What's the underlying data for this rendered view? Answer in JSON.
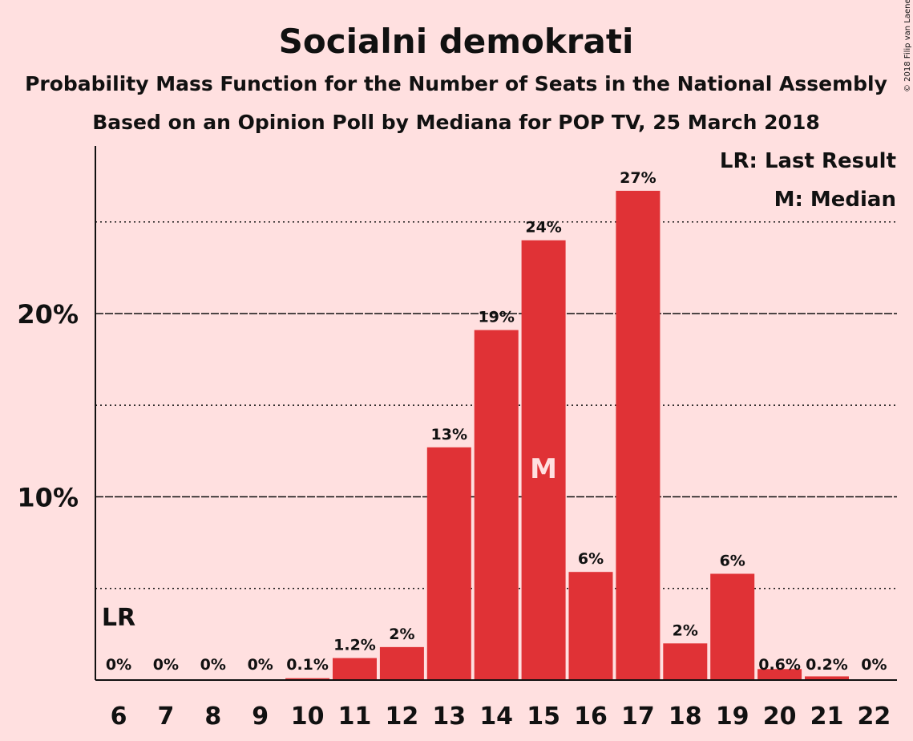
{
  "title": "Socialni demokrati",
  "subtitle1": "Probability Mass Function for the Number of Seats in the National Assembly",
  "subtitle2": "Based on an Opinion Poll by Mediana for POP TV, 25 March 2018",
  "copyright": "© 2018 Filip van Laenen",
  "legend": {
    "last_result": "LR: Last Result",
    "median": "M: Median"
  },
  "chart_data": {
    "type": "bar",
    "categories": [
      "6",
      "7",
      "8",
      "9",
      "10",
      "11",
      "12",
      "13",
      "14",
      "15",
      "16",
      "17",
      "18",
      "19",
      "20",
      "21",
      "22"
    ],
    "values": [
      0,
      0,
      0,
      0,
      0.1,
      1.2,
      1.8,
      12.7,
      19.1,
      24.0,
      5.9,
      26.7,
      2.0,
      5.8,
      0.6,
      0.2,
      0
    ],
    "data_labels": [
      "0%",
      "0%",
      "0%",
      "0%",
      "0.1%",
      "1.2%",
      "2%",
      "13%",
      "19%",
      "24%",
      "6%",
      "27%",
      "2%",
      "6%",
      "0.6%",
      "0.2%",
      "0%"
    ],
    "ylim": [
      0,
      29
    ],
    "yticks": [
      10,
      20
    ],
    "ytick_labels": [
      "10%",
      "20%"
    ],
    "minor_gridlines": [
      5,
      15,
      25
    ],
    "bar_color": "#E03236",
    "last_result": {
      "category": "6",
      "label": "LR"
    },
    "median": {
      "category": "15",
      "label": "M"
    },
    "legend_position": "top-right"
  }
}
